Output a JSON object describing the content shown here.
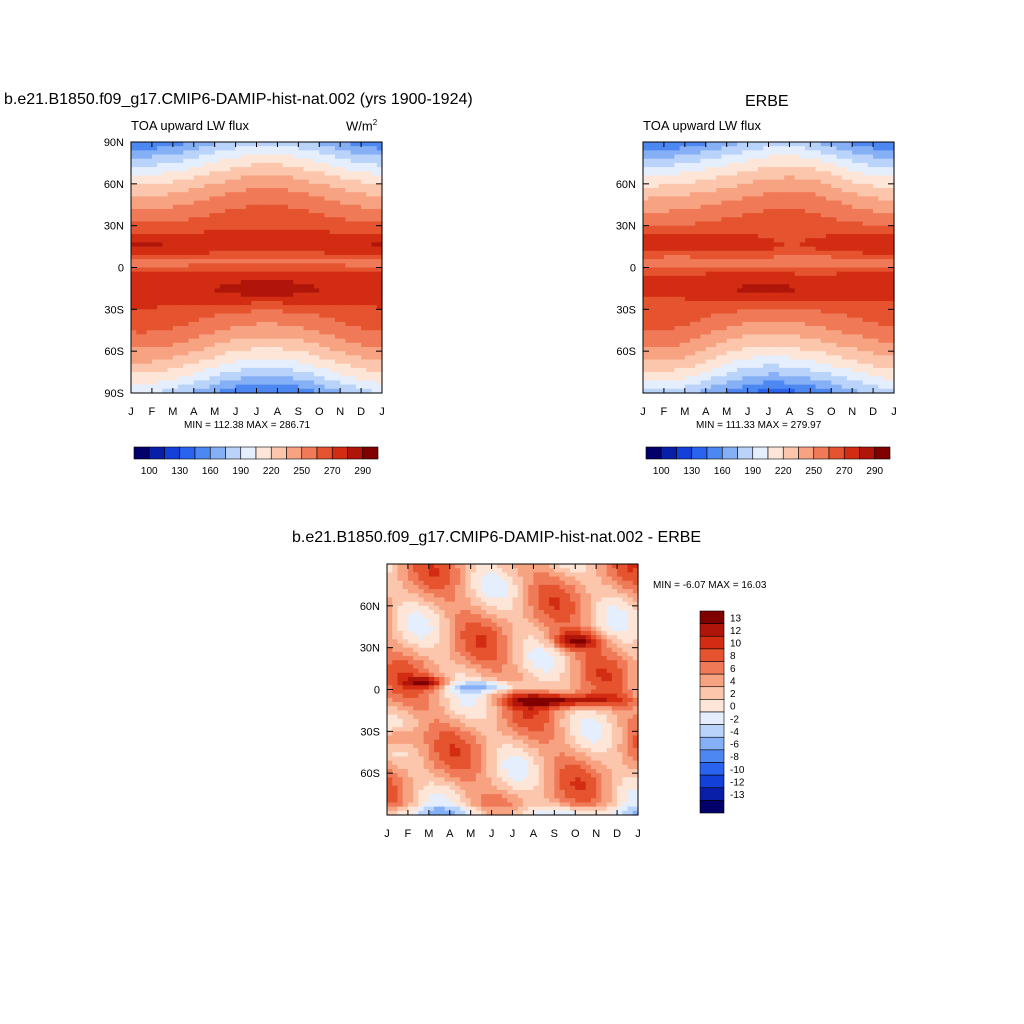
{
  "panel_left": {
    "title": "b.e21.B1850.f09_g17.CMIP6-DAMIP-hist-nat.002 (yrs 1900-1924)",
    "left_string": "TOA upward LW flux",
    "units": "W/m",
    "units_sup": "2",
    "stats": "MIN = 112.38 MAX = 286.71"
  },
  "panel_right": {
    "title": "ERBE",
    "left_string": "TOA upward LW flux",
    "stats": "MIN = 111.33 MAX = 279.97"
  },
  "panel_diff": {
    "title": "b.e21.B1850.f09_g17.CMIP6-DAMIP-hist-nat.002 - ERBE",
    "stats": "MIN =  -6.07 MAX =  16.03"
  },
  "chart_data": [
    {
      "type": "heatmap",
      "title": "b.e21.B1850.f09_g17.CMIP6-DAMIP-hist-nat.002 (yrs 1900-1924)",
      "x_ticks": [
        "J",
        "F",
        "M",
        "A",
        "M",
        "J",
        "J",
        "A",
        "S",
        "O",
        "N",
        "D",
        "J"
      ],
      "y_ticks": [
        "90N",
        "60N",
        "30N",
        "0",
        "30S",
        "60S",
        "90S"
      ],
      "min": 112.38,
      "max": 286.71,
      "colorbar_labels": [
        "100",
        "130",
        "160",
        "190",
        "220",
        "250",
        "270",
        "290"
      ],
      "colorbar_colors": [
        "#03006a",
        "#0a1fa8",
        "#1240d8",
        "#2a64ee",
        "#4d88f2",
        "#86b0f5",
        "#b9d3fa",
        "#e4eefc",
        "#fde6d8",
        "#fbc6ac",
        "#f7a382",
        "#f07a58",
        "#e5532f",
        "#d22c12",
        "#b0150a",
        "#800000"
      ]
    },
    {
      "type": "heatmap",
      "title": "ERBE",
      "x_ticks": [
        "J",
        "F",
        "M",
        "A",
        "M",
        "J",
        "J",
        "A",
        "S",
        "O",
        "N",
        "D",
        "J"
      ],
      "y_ticks": [
        "60N",
        "30N",
        "0",
        "30S",
        "60S"
      ],
      "min": 111.33,
      "max": 279.97,
      "colorbar_labels": [
        "100",
        "130",
        "160",
        "190",
        "220",
        "250",
        "270",
        "290"
      ],
      "colorbar_colors": [
        "#03006a",
        "#0a1fa8",
        "#1240d8",
        "#2a64ee",
        "#4d88f2",
        "#86b0f5",
        "#b9d3fa",
        "#e4eefc",
        "#fde6d8",
        "#fbc6ac",
        "#f7a382",
        "#f07a58",
        "#e5532f",
        "#d22c12",
        "#b0150a",
        "#800000"
      ]
    },
    {
      "type": "heatmap",
      "title": "b.e21.B1850.f09_g17.CMIP6-DAMIP-hist-nat.002 - ERBE",
      "x_ticks": [
        "J",
        "F",
        "M",
        "A",
        "M",
        "J",
        "J",
        "A",
        "S",
        "O",
        "N",
        "D",
        "J"
      ],
      "y_ticks": [
        "60N",
        "30N",
        "0",
        "30S",
        "60S"
      ],
      "min": -6.07,
      "max": 16.03,
      "colorbar_labels": [
        "13",
        "12",
        "10",
        "8",
        "6",
        "4",
        "2",
        "0",
        "-2",
        "-4",
        "-6",
        "-8",
        "-10",
        "-12",
        "-13"
      ],
      "colorbar_colors": [
        "#800000",
        "#b0150a",
        "#d22c12",
        "#e5532f",
        "#f07a58",
        "#f7a382",
        "#fbc6ac",
        "#fde6d8",
        "#e4eefc",
        "#b9d3fa",
        "#86b0f5",
        "#4d88f2",
        "#2a64ee",
        "#1240d8",
        "#0a1fa8",
        "#03006a"
      ]
    }
  ]
}
